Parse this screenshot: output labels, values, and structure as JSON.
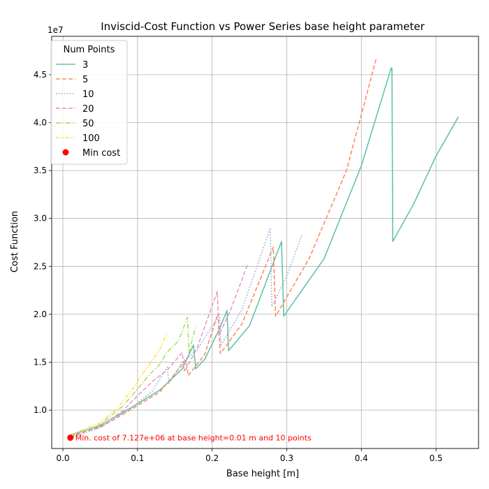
{
  "chart_data": {
    "type": "line",
    "title": "Inviscid-Cost Function vs Power Series base height parameter",
    "xlabel": "Base height [m]",
    "ylabel": "Cost Function",
    "y_scale_label": "1e7",
    "xlim": [
      -0.015,
      0.557
    ],
    "ylim": [
      6.0,
      49.0
    ],
    "y_units_multiplier": 10000000,
    "x_ticks": [
      0.0,
      0.1,
      0.2,
      0.3,
      0.4,
      0.5
    ],
    "x_tick_labels": [
      "0.0",
      "0.1",
      "0.2",
      "0.3",
      "0.4",
      "0.5"
    ],
    "y_ticks": [
      10,
      15,
      20,
      25,
      30,
      35,
      40,
      45
    ],
    "y_tick_labels": [
      "1.0",
      "1.5",
      "2.0",
      "2.5",
      "3.0",
      "3.5",
      "4.0",
      "4.5"
    ],
    "grid": true,
    "legend": {
      "title": "Num Points",
      "placement": "top-left"
    },
    "series": [
      {
        "name": "3",
        "color": "#66c2a5",
        "dash": "solid",
        "width": 1.6,
        "x": [
          0.01,
          0.05,
          0.09,
          0.13,
          0.16,
          0.175,
          0.178,
          0.19,
          0.21,
          0.22,
          0.222,
          0.25,
          0.29,
          0.293,
          0.296,
          0.35,
          0.4,
          0.44,
          0.441,
          0.442,
          0.47,
          0.5,
          0.53
        ],
        "y": [
          7.4,
          8.4,
          10.2,
          12.1,
          14.3,
          16.8,
          14.3,
          15.3,
          18.5,
          20.4,
          16.2,
          18.8,
          27.0,
          27.6,
          19.8,
          25.8,
          35.5,
          45.7,
          45.7,
          27.6,
          31.5,
          36.5,
          40.6
        ]
      },
      {
        "name": "5",
        "color": "#fc8d62",
        "dash": "dashed",
        "width": 1.6,
        "x": [
          0.01,
          0.05,
          0.09,
          0.13,
          0.165,
          0.168,
          0.19,
          0.208,
          0.211,
          0.24,
          0.282,
          0.285,
          0.33,
          0.38,
          0.42
        ],
        "y": [
          7.3,
          8.2,
          10.0,
          11.9,
          15.2,
          13.6,
          15.8,
          20.1,
          15.9,
          19.0,
          27.0,
          19.8,
          25.8,
          35.0,
          46.7
        ]
      },
      {
        "name": "10",
        "color": "#8da0cb",
        "dash": "dotted",
        "width": 1.5,
        "x": [
          0.01,
          0.05,
          0.09,
          0.12,
          0.14,
          0.142,
          0.16,
          0.18,
          0.21,
          0.212,
          0.24,
          0.278,
          0.28,
          0.3,
          0.32
        ],
        "y": [
          7.1,
          8.2,
          10.1,
          12.0,
          14.5,
          12.8,
          15.0,
          16.3,
          20.0,
          16.8,
          20.5,
          29.0,
          20.8,
          24.0,
          28.2
        ]
      },
      {
        "name": "20",
        "color": "#e78ac3",
        "dash": "dashed",
        "width": 1.4,
        "x": [
          0.01,
          0.05,
          0.08,
          0.1,
          0.12,
          0.14,
          0.16,
          0.163,
          0.18,
          0.207,
          0.209,
          0.225,
          0.248
        ],
        "y": [
          7.2,
          8.3,
          9.9,
          11.5,
          13.0,
          14.2,
          16.0,
          14.0,
          16.5,
          22.4,
          17.8,
          20.5,
          25.3
        ]
      },
      {
        "name": "50",
        "color": "#a6d854",
        "dash": "dashdot",
        "width": 1.4,
        "x": [
          0.01,
          0.05,
          0.08,
          0.1,
          0.115,
          0.13,
          0.14,
          0.155,
          0.167,
          0.169,
          0.178
        ],
        "y": [
          7.3,
          8.5,
          10.4,
          12.2,
          13.6,
          14.8,
          16.1,
          17.2,
          19.7,
          16.0,
          18.8
        ]
      },
      {
        "name": "100",
        "color": "#ffd92f",
        "dash": "dashdotdot",
        "width": 1.4,
        "x": [
          0.01,
          0.05,
          0.07,
          0.09,
          0.105,
          0.12,
          0.13,
          0.138,
          0.14
        ],
        "y": [
          7.4,
          8.7,
          10.0,
          11.8,
          13.6,
          15.2,
          16.4,
          17.8,
          18.0
        ]
      }
    ],
    "min_point": {
      "name": "Min cost",
      "x": 0.01,
      "y": 7.127,
      "color": "#ff0000"
    },
    "annotation": {
      "text": "Min. cost of 7.127e+06 at base height=0.01 m and 10 points",
      "color": "#ff0000"
    }
  }
}
